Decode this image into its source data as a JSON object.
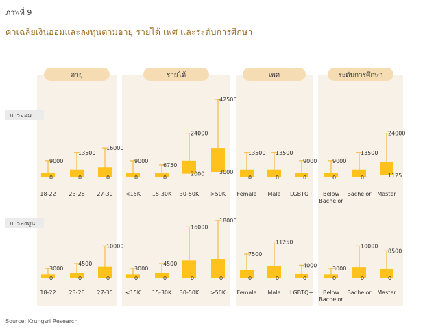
{
  "figure_label": "ภาพที่ 9",
  "title": "ค่าเฉลี่ยเงินออมและลงทุนตามอายุ รายได้ เพศ และระดับการศึกษา",
  "source": "Source: Krungsri Research",
  "colors": {
    "panel": "#f8f1e8",
    "header": "#f5dcb2",
    "box": "#ffc21c",
    "whisker": "#f2b21a",
    "rowlabel": "#ebebeb"
  },
  "chart_data": {
    "type": "boxplot",
    "groups": [
      {
        "label": "อายุ",
        "categories": [
          [
            "18-22"
          ],
          [
            "23-26"
          ],
          [
            "27-30"
          ]
        ]
      },
      {
        "label": "รายได้",
        "categories": [
          [
            "<15K"
          ],
          [
            "15-30K"
          ],
          [
            "30-50K"
          ],
          [
            ">50K"
          ]
        ]
      },
      {
        "label": "เพศ",
        "categories": [
          [
            "Female"
          ],
          [
            "Male"
          ],
          [
            "LGBTQ+"
          ]
        ]
      },
      {
        "label": "ระดับการศึกษา",
        "categories": [
          [
            "Below",
            "Bachelor"
          ],
          [
            "Bachelor"
          ],
          [
            "Master"
          ]
        ]
      }
    ],
    "rows": [
      {
        "label": "การออม",
        "items": [
          {
            "min": 0,
            "q1": 0,
            "q3": 2500,
            "max": 9000,
            "max_label": "9000",
            "min_label": "0"
          },
          {
            "min": 0,
            "q1": 0,
            "q3": 4200,
            "max": 13500,
            "max_label": "13500",
            "min_label": "0"
          },
          {
            "min": 0,
            "q1": 0,
            "q3": 5500,
            "max": 16000,
            "max_label": "16000",
            "min_label": "0"
          },
          {
            "min": 0,
            "q1": 0,
            "q3": 2500,
            "max": 9000,
            "max_label": "9000",
            "min_label": "0"
          },
          {
            "min": 0,
            "q1": 0,
            "q3": 2200,
            "max": 6750,
            "max_label": "6750",
            "min_label": "0"
          },
          {
            "min": 2000,
            "q1": 2000,
            "q3": 9000,
            "max": 24000,
            "max_label": "24000",
            "min_label": "2000"
          },
          {
            "min": 3000,
            "q1": 3000,
            "q3": 16000,
            "max": 42500,
            "max_label": "42500",
            "min_label": "3000"
          },
          {
            "min": 0,
            "q1": 0,
            "q3": 4200,
            "max": 13500,
            "max_label": "13500",
            "min_label": "0"
          },
          {
            "min": 0,
            "q1": 0,
            "q3": 4200,
            "max": 13500,
            "max_label": "13500",
            "min_label": "0"
          },
          {
            "min": 0,
            "q1": 0,
            "q3": 2500,
            "max": 9000,
            "max_label": "9000",
            "min_label": "0"
          },
          {
            "min": 0,
            "q1": 0,
            "q3": 2500,
            "max": 9000,
            "max_label": "9000",
            "min_label": "0"
          },
          {
            "min": 0,
            "q1": 0,
            "q3": 4200,
            "max": 13500,
            "max_label": "13500",
            "min_label": "0"
          },
          {
            "min": 1125,
            "q1": 1125,
            "q3": 8500,
            "max": 24000,
            "max_label": "24000",
            "min_label": "1125"
          }
        ]
      },
      {
        "label": "การลงทุน",
        "items": [
          {
            "min": 0,
            "q1": 0,
            "q3": 1000,
            "max": 3000,
            "max_label": "3000",
            "min_label": "0"
          },
          {
            "min": 0,
            "q1": 0,
            "q3": 1500,
            "max": 4500,
            "max_label": "4500",
            "min_label": "0"
          },
          {
            "min": 0,
            "q1": 0,
            "q3": 3500,
            "max": 10000,
            "max_label": "10000",
            "min_label": "0"
          },
          {
            "min": 0,
            "q1": 0,
            "q3": 1000,
            "max": 3000,
            "max_label": "3000",
            "min_label": "0"
          },
          {
            "min": 0,
            "q1": 0,
            "q3": 1500,
            "max": 4500,
            "max_label": "4500",
            "min_label": "0"
          },
          {
            "min": 0,
            "q1": 0,
            "q3": 5500,
            "max": 16000,
            "max_label": "16000",
            "min_label": "0"
          },
          {
            "min": 0,
            "q1": 0,
            "q3": 6000,
            "max": 18000,
            "max_label": "18000",
            "min_label": "0"
          },
          {
            "min": 0,
            "q1": 0,
            "q3": 2500,
            "max": 7500,
            "max_label": "7500",
            "min_label": "0"
          },
          {
            "min": 0,
            "q1": 0,
            "q3": 3800,
            "max": 11250,
            "max_label": "11250",
            "min_label": "0"
          },
          {
            "min": 0,
            "q1": 0,
            "q3": 1300,
            "max": 4000,
            "max_label": "4000",
            "min_label": "0"
          },
          {
            "min": 0,
            "q1": 0,
            "q3": 1000,
            "max": 3000,
            "max_label": "3000",
            "min_label": "0"
          },
          {
            "min": 0,
            "q1": 0,
            "q3": 3400,
            "max": 10000,
            "max_label": "10000",
            "min_label": "0"
          },
          {
            "min": 0,
            "q1": 0,
            "q3": 2800,
            "max": 8500,
            "max_label": "8500",
            "min_label": "0"
          }
        ]
      }
    ]
  }
}
